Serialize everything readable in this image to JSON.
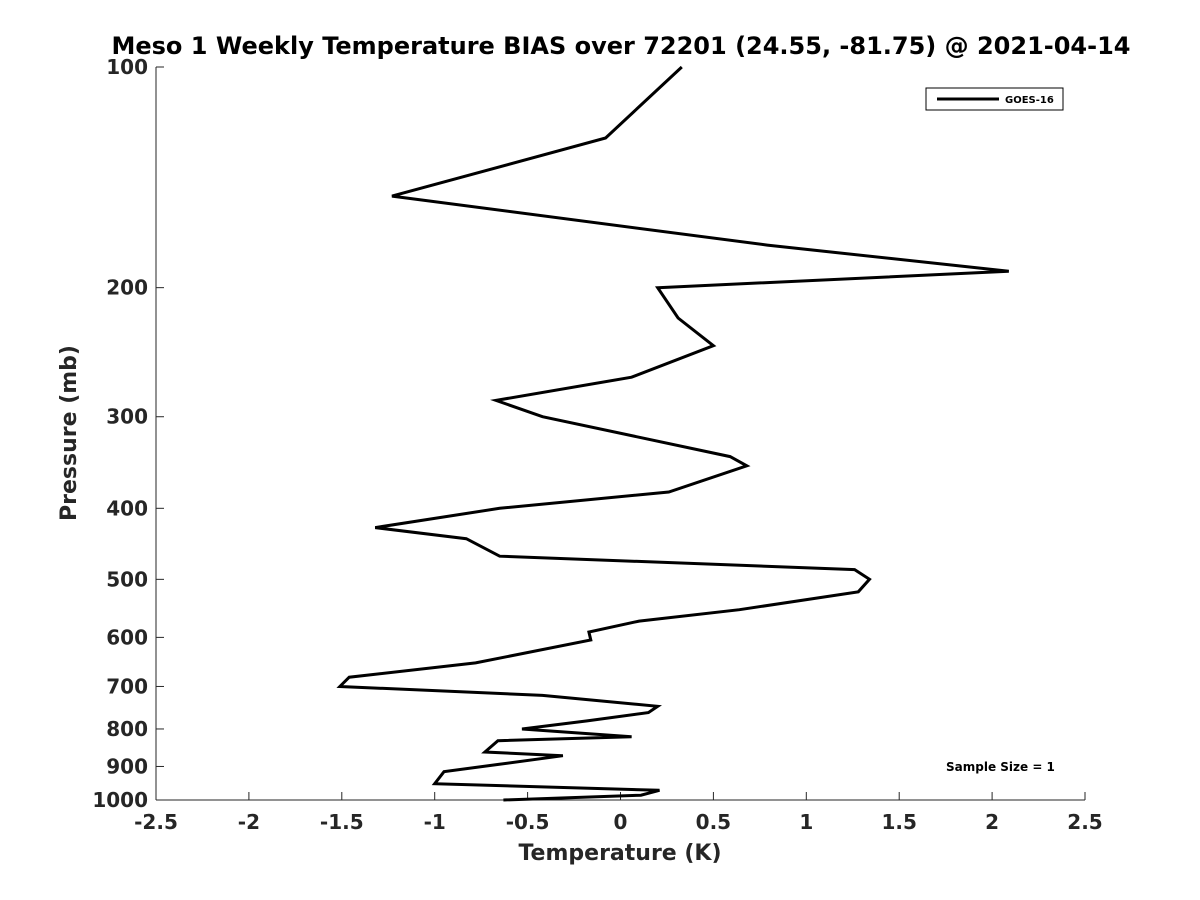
{
  "chart_data": {
    "type": "line",
    "title": "Meso 1 Weekly Temperature BIAS over 72201 (24.55, -81.75) @ 2021-04-14",
    "xlabel": "Temperature (K)",
    "ylabel": "Pressure (mb)",
    "xlim": [
      -2.5,
      2.5
    ],
    "ylim": [
      100,
      1000
    ],
    "yscale": "log",
    "yreversed": true,
    "grid": false,
    "x_ticks": [
      -2.5,
      -2,
      -1.5,
      -1,
      -0.5,
      0,
      0.5,
      1,
      1.5,
      2,
      2.5
    ],
    "x_tick_labels": [
      "-2.5",
      "-2",
      "-1.5",
      "-1",
      "-0.5",
      "0",
      "0.5",
      "1",
      "1.5",
      "2",
      "2.5"
    ],
    "y_ticks": [
      100,
      200,
      300,
      400,
      500,
      600,
      700,
      800,
      900,
      1000
    ],
    "y_tick_labels": [
      "100",
      "200",
      "300",
      "400",
      "500",
      "600",
      "700",
      "800",
      "900",
      "1000"
    ],
    "legend": {
      "position": "top-right",
      "entries": [
        "GOES-16"
      ]
    },
    "annotation": "Sample Size = 1",
    "series": [
      {
        "name": "GOES-16",
        "color": "#000000",
        "points": [
          [
            0.33,
            100
          ],
          [
            -0.08,
            125
          ],
          [
            -1.23,
            150
          ],
          [
            0.79,
            175
          ],
          [
            2.09,
            190
          ],
          [
            0.2,
            200
          ],
          [
            0.31,
            220
          ],
          [
            0.5,
            240
          ],
          [
            0.06,
            265
          ],
          [
            -0.67,
            285
          ],
          [
            -0.42,
            300
          ],
          [
            0.59,
            340
          ],
          [
            0.68,
            350
          ],
          [
            0.26,
            380
          ],
          [
            -0.65,
            400
          ],
          [
            -1.32,
            425
          ],
          [
            -0.83,
            440
          ],
          [
            -0.65,
            465
          ],
          [
            1.26,
            485
          ],
          [
            1.34,
            500
          ],
          [
            1.28,
            520
          ],
          [
            0.64,
            550
          ],
          [
            0.1,
            570
          ],
          [
            -0.17,
            590
          ],
          [
            -0.16,
            605
          ],
          [
            -0.78,
            650
          ],
          [
            -1.46,
            680
          ],
          [
            -1.51,
            700
          ],
          [
            -0.42,
            720
          ],
          [
            0.2,
            745
          ],
          [
            0.15,
            760
          ],
          [
            -0.18,
            780
          ],
          [
            -0.53,
            800
          ],
          [
            0.06,
            820
          ],
          [
            -0.66,
            830
          ],
          [
            -0.73,
            860
          ],
          [
            -0.31,
            870
          ],
          [
            -0.95,
            915
          ],
          [
            -1.0,
            950
          ],
          [
            0.21,
            970
          ],
          [
            0.11,
            985
          ],
          [
            -0.63,
            1000
          ]
        ]
      }
    ]
  }
}
